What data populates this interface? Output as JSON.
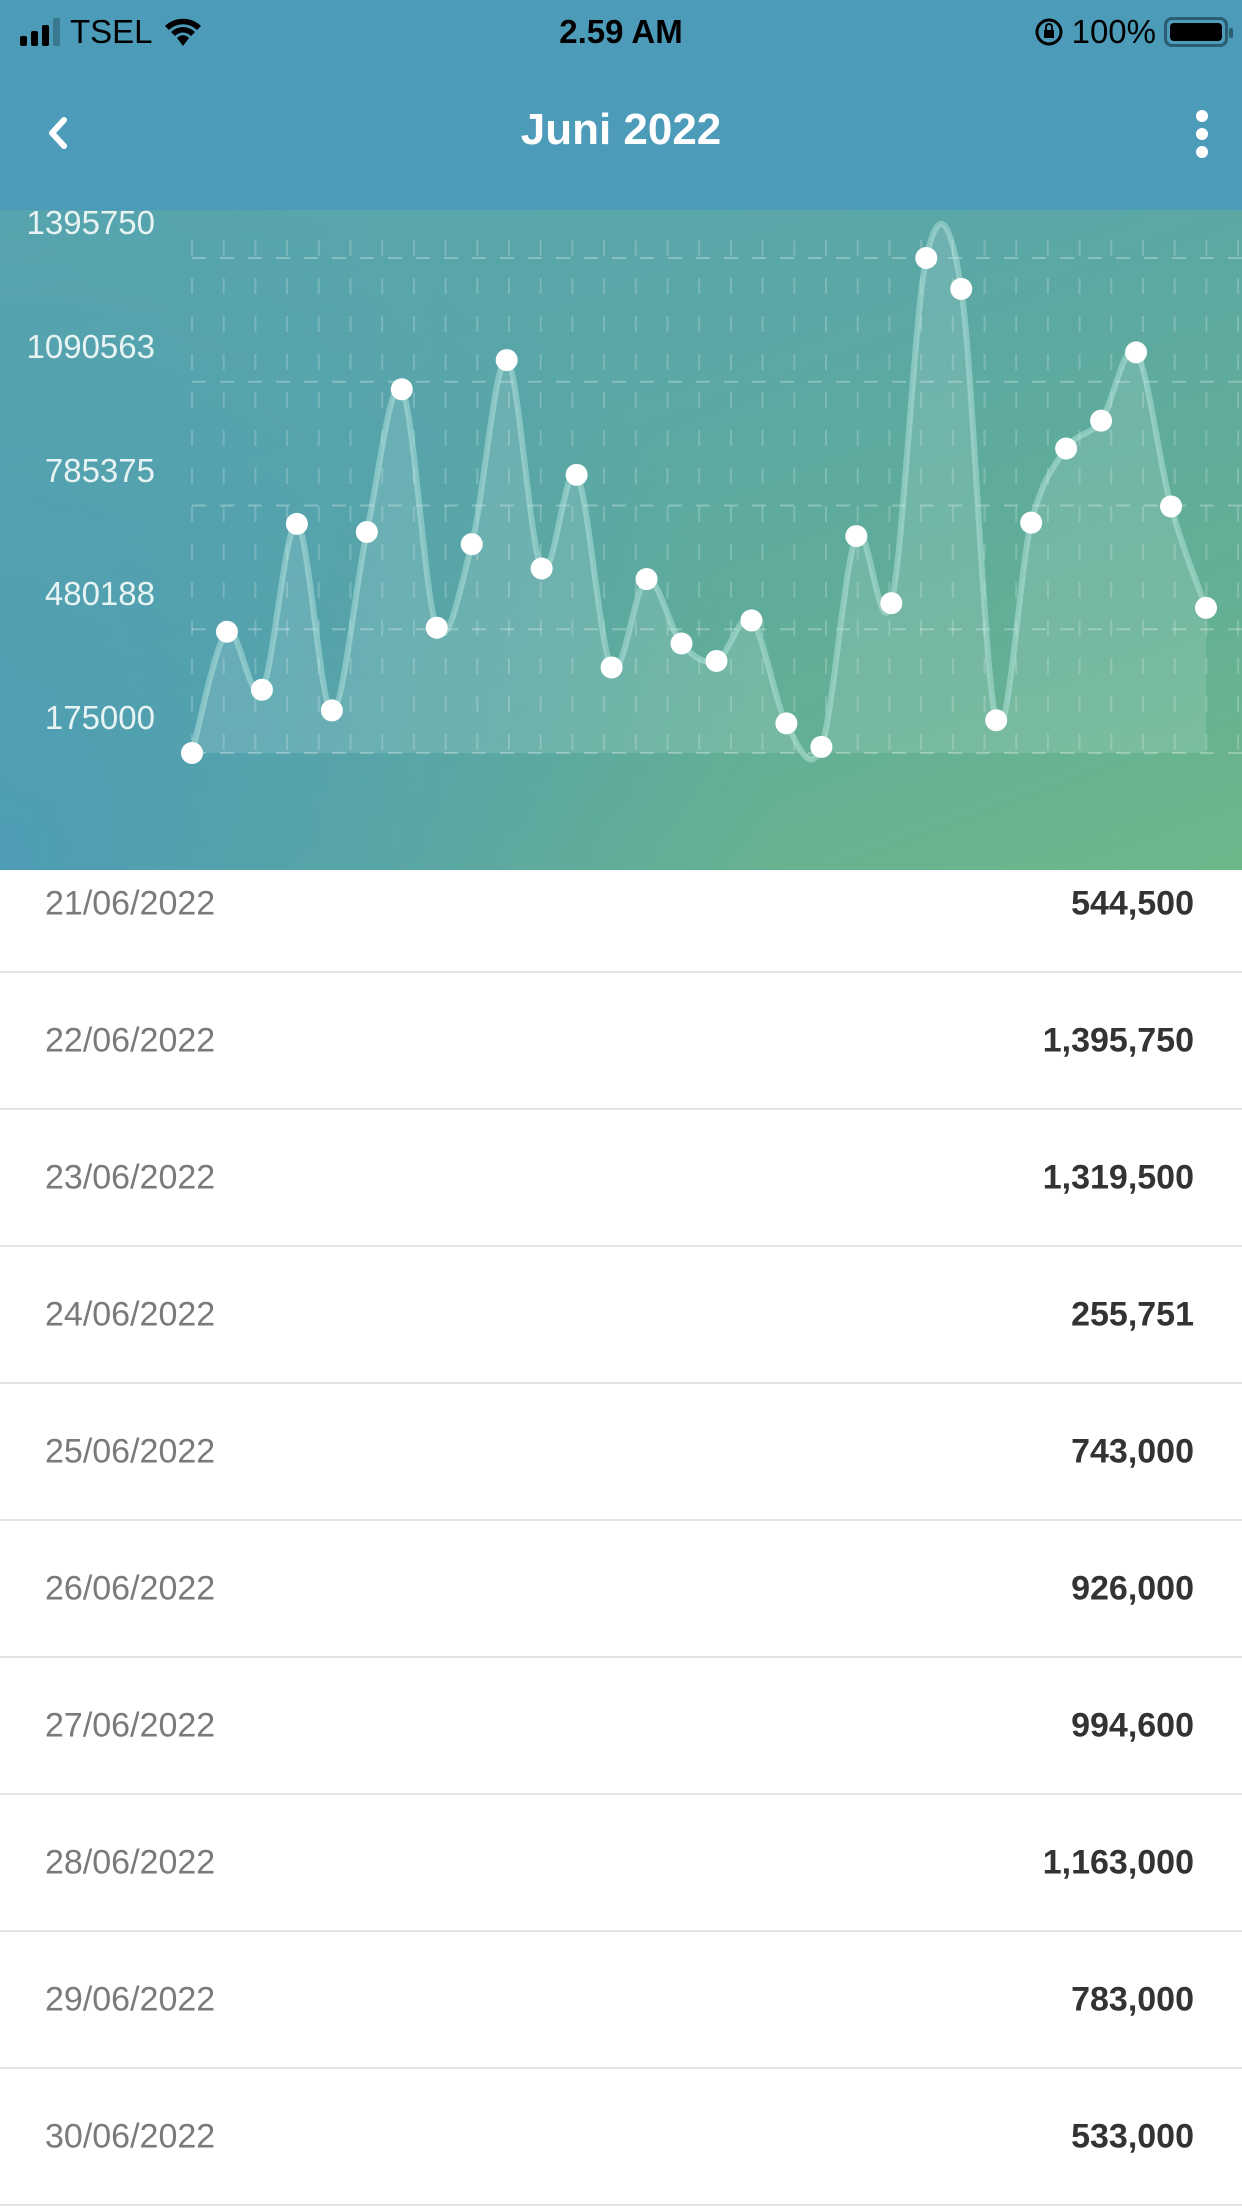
{
  "status_bar": {
    "carrier": "TSEL",
    "time": "2.59 AM",
    "battery": "100%"
  },
  "header": {
    "title": "Juni 2022"
  },
  "chart_data": {
    "type": "line",
    "x": [
      1,
      2,
      3,
      4,
      5,
      6,
      7,
      8,
      9,
      10,
      11,
      12,
      13,
      14,
      15,
      16,
      17,
      18,
      19,
      20,
      21,
      22,
      23,
      24,
      25,
      26,
      27,
      28,
      29,
      30
    ],
    "values": [
      175000,
      474000,
      331000,
      740000,
      280000,
      720000,
      1072000,
      484000,
      690000,
      1144000,
      630000,
      861000,
      386000,
      604000,
      445000,
      402000,
      502000,
      248000,
      190000,
      710000,
      544500,
      1395750,
      1319500,
      255751,
      743000,
      926000,
      994600,
      1163000,
      783000,
      533000
    ],
    "y_ticks": [
      "175000",
      "480188",
      "785375",
      "1090563",
      "1395750"
    ],
    "ylim": [
      175000,
      1395750
    ],
    "grid": true,
    "colors": {
      "line": "#8fcbc0",
      "point": "#ffffff"
    }
  },
  "list": [
    {
      "date": "21/06/2022",
      "value": "544,500"
    },
    {
      "date": "22/06/2022",
      "value": "1,395,750"
    },
    {
      "date": "23/06/2022",
      "value": "1,319,500"
    },
    {
      "date": "24/06/2022",
      "value": "255,751"
    },
    {
      "date": "25/06/2022",
      "value": "743,000"
    },
    {
      "date": "26/06/2022",
      "value": "926,000"
    },
    {
      "date": "27/06/2022",
      "value": "994,600"
    },
    {
      "date": "28/06/2022",
      "value": "1,163,000"
    },
    {
      "date": "29/06/2022",
      "value": "783,000"
    },
    {
      "date": "30/06/2022",
      "value": "533,000"
    }
  ]
}
